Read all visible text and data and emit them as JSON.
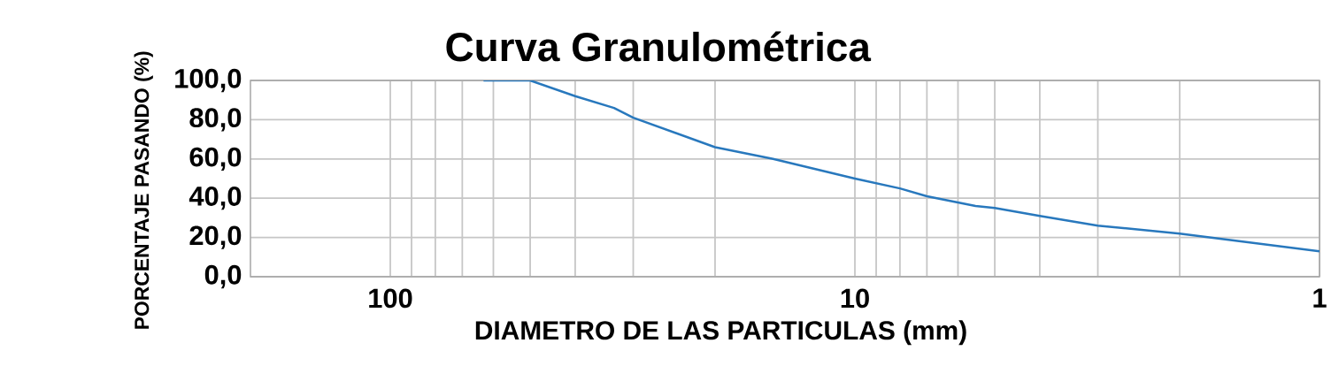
{
  "chart_data": {
    "type": "line",
    "title": "Curva Granulométrica",
    "xlabel": "DIAMETRO DE LAS PARTICULAS (mm)",
    "ylabel": "PORCENTAJE PASANDO (%)",
    "x": [
      63,
      50,
      40,
      33,
      30,
      20,
      15,
      10,
      8,
      7,
      5.5,
      5,
      4,
      3,
      2,
      1
    ],
    "values": [
      100,
      100,
      92,
      86,
      81,
      66,
      60,
      50,
      45,
      41,
      36,
      35,
      31,
      26,
      22,
      13
    ],
    "color": "#2878bd",
    "log": "x",
    "grid": true,
    "xlim": [
      200,
      1
    ],
    "ylim": [
      0,
      100
    ],
    "xticks": [
      100,
      10,
      1
    ],
    "yticks": [
      {
        "value": 0,
        "label": "0,0"
      },
      {
        "value": 20,
        "label": "20,0"
      },
      {
        "value": 40,
        "label": "40,0"
      },
      {
        "value": 60,
        "label": "60,0"
      },
      {
        "value": 80,
        "label": "80,0"
      },
      {
        "value": 100,
        "label": "100,0"
      }
    ]
  }
}
